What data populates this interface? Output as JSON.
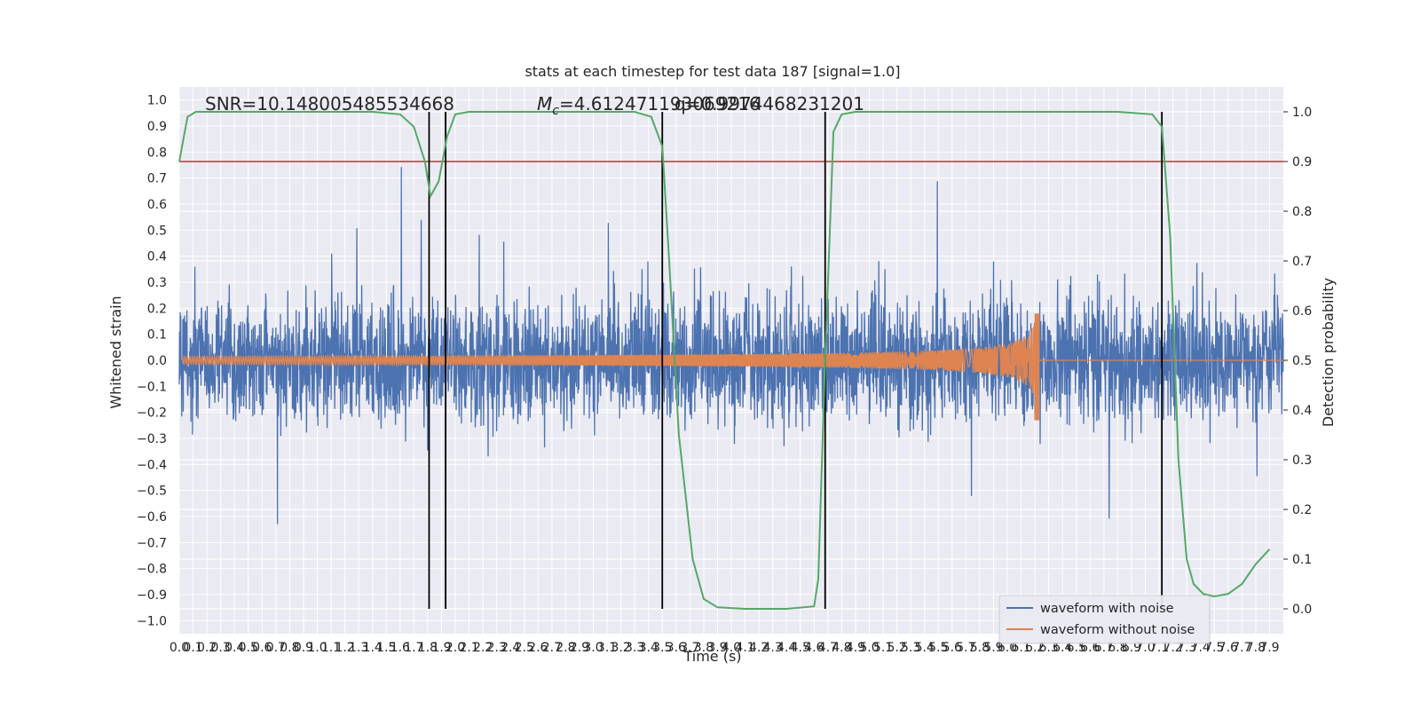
{
  "chart_data": {
    "type": "line",
    "title": "stats at each timestep for test data 187 [signal=1.0]",
    "xlabel": "Time (s)",
    "ylabel": "Whitened strain",
    "y2label": "Detection probability",
    "xlim": [
      0.0,
      8.0
    ],
    "ylim": [
      -1.05,
      1.05
    ],
    "y2lim": [
      -0.05,
      1.05
    ],
    "x_ticks": [
      "0.0",
      "0.1",
      "0.2",
      "0.3",
      "0.4",
      "0.5",
      "0.6",
      "0.7",
      "0.8",
      "0.9",
      "1.0",
      "1.1",
      "1.2",
      "1.3",
      "1.4",
      "1.5",
      "1.6",
      "1.7",
      "1.8",
      "1.9",
      "2.0",
      "2.1",
      "2.2",
      "2.3",
      "2.4",
      "2.5",
      "2.6",
      "2.7",
      "2.8",
      "2.9",
      "3.0",
      "3.1",
      "3.2",
      "3.3",
      "3.4",
      "3.5",
      "3.6",
      "3.7",
      "3.8",
      "3.9",
      "4.0",
      "4.1",
      "4.2",
      "4.3",
      "4.4",
      "4.5",
      "4.6",
      "4.7",
      "4.8",
      "4.9",
      "5.0",
      "5.1",
      "5.2",
      "5.3",
      "5.4",
      "5.5",
      "5.6",
      "5.7",
      "5.8",
      "5.9",
      "6.0",
      "6.1",
      "6.2",
      "6.3",
      "6.4",
      "6.5",
      "6.6",
      "6.7",
      "6.8",
      "6.9",
      "7.0",
      "7.1",
      "7.2",
      "7.3",
      "7.4",
      "7.5",
      "7.6",
      "7.7",
      "7.8",
      "7.9"
    ],
    "y_ticks": [
      "−1.0",
      "−0.9",
      "−0.8",
      "−0.7",
      "−0.6",
      "−0.5",
      "−0.4",
      "−0.3",
      "−0.2",
      "−0.1",
      "0.0",
      "0.1",
      "0.2",
      "0.3",
      "0.4",
      "0.5",
      "0.6",
      "0.7",
      "0.8",
      "0.9",
      "1.0"
    ],
    "y2_ticks": [
      "0.0",
      "0.1",
      "0.2",
      "0.3",
      "0.4",
      "0.5",
      "0.6",
      "0.7",
      "0.8",
      "0.9",
      "1.0"
    ],
    "annotations": [
      "SNR=10.148005485534668",
      "$M_c$=4.612471193069216",
      "SNR=10.148005485534668 M_c=4.612471193069216 q=0.9974468231201"
    ],
    "annotation_snr": "SNR=10.148005485534668",
    "annotation_mc_prefix": "M",
    "annotation_mc_sub": "c",
    "annotation_mc_value": "=4.612471193069216",
    "annotation_q": "q=0.9974468231201",
    "threshold": 0.9,
    "vertical_lines": [
      1.81,
      1.93,
      3.5,
      4.68,
      7.12
    ],
    "series": [
      {
        "name": "waveform with noise",
        "color": "#4c72b0",
        "noise_amplitude": 0.2,
        "x_range": [
          0.0,
          8.0
        ]
      },
      {
        "name": "waveform without noise",
        "color": "#dd8452",
        "chirp_start_amplitude": 0.015,
        "merger_time": 6.22,
        "peak": 0.18,
        "trough": -0.23
      }
    ],
    "detection_probability": {
      "color": "#55a868",
      "x": [
        0.0,
        0.06,
        0.12,
        0.3,
        0.6,
        1.0,
        1.4,
        1.6,
        1.7,
        1.78,
        1.82,
        1.88,
        1.94,
        2.0,
        2.1,
        2.3,
        2.6,
        3.0,
        3.3,
        3.42,
        3.5,
        3.55,
        3.62,
        3.72,
        3.8,
        3.9,
        4.1,
        4.4,
        4.6,
        4.63,
        4.68,
        4.74,
        4.8,
        4.9,
        5.2,
        6.0,
        6.8,
        7.05,
        7.12,
        7.18,
        7.24,
        7.3,
        7.35,
        7.42,
        7.5,
        7.6,
        7.7,
        7.8,
        7.9
      ],
      "y": [
        0.9,
        0.99,
        1.0,
        1.0,
        1.0,
        1.0,
        1.0,
        0.995,
        0.97,
        0.9,
        0.83,
        0.86,
        0.95,
        0.995,
        1.0,
        1.0,
        1.0,
        1.0,
        1.0,
        0.99,
        0.93,
        0.7,
        0.35,
        0.1,
        0.02,
        0.003,
        0.0,
        0.0,
        0.005,
        0.06,
        0.5,
        0.96,
        0.995,
        1.0,
        1.0,
        1.0,
        1.0,
        0.995,
        0.97,
        0.75,
        0.3,
        0.1,
        0.05,
        0.03,
        0.025,
        0.03,
        0.05,
        0.09,
        0.12
      ]
    }
  },
  "legend": {
    "items": [
      {
        "label": "waveform with noise",
        "color": "#4c72b0"
      },
      {
        "label": "waveform without noise",
        "color": "#dd8452"
      }
    ]
  },
  "style": {
    "plot_bg": "#eaeaf2",
    "grid": "#ffffff",
    "threshold_color": "#c44e52",
    "vline_color": "#000000"
  }
}
